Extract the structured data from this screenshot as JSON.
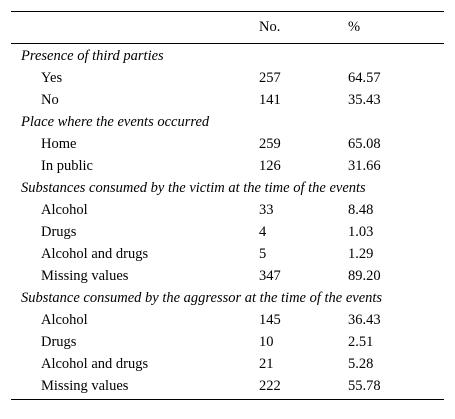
{
  "header": {
    "label": "",
    "no": "No.",
    "pct": "%"
  },
  "sections": [
    {
      "title": "Presence of third parties",
      "rows": [
        {
          "label": "Yes",
          "no": "257",
          "pct": "64.57"
        },
        {
          "label": "No",
          "no": "141",
          "pct": "35.43"
        }
      ]
    },
    {
      "title": "Place where the events occurred",
      "rows": [
        {
          "label": "Home",
          "no": "259",
          "pct": "65.08"
        },
        {
          "label": "In public",
          "no": "126",
          "pct": "31.66"
        }
      ]
    },
    {
      "title": "Substances consumed by the victim at the time of the events",
      "rows": [
        {
          "label": "Alcohol",
          "no": "33",
          "pct": "8.48"
        },
        {
          "label": "Drugs",
          "no": "4",
          "pct": "1.03"
        },
        {
          "label": "Alcohol and drugs",
          "no": "5",
          "pct": "1.29"
        },
        {
          "label": "Missing values",
          "no": "347",
          "pct": "89.20"
        }
      ]
    },
    {
      "title": "Substance consumed by the aggressor at the time of the events",
      "rows": [
        {
          "label": "Alcohol",
          "no": "145",
          "pct": "36.43"
        },
        {
          "label": "Drugs",
          "no": "10",
          "pct": "2.51"
        },
        {
          "label": "Alcohol and drugs",
          "no": "21",
          "pct": "5.28"
        },
        {
          "label": "Missing values",
          "no": "222",
          "pct": "55.78"
        }
      ]
    }
  ]
}
